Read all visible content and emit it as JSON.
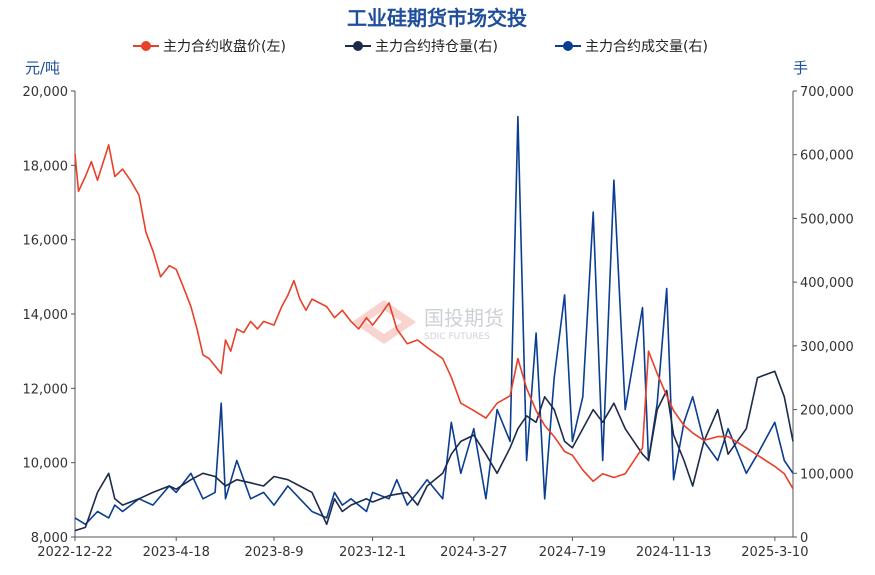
{
  "chart_data": {
    "type": "line",
    "title": "工业硅期货市场交投",
    "y_left_unit": "元/吨",
    "y_right_unit": "手",
    "ylim_left": [
      8000,
      20000
    ],
    "ylim_right": [
      0,
      700000
    ],
    "yticks_left": [
      "20,000",
      "18,000",
      "16,000",
      "14,000",
      "12,000",
      "10,000",
      "8,000"
    ],
    "yticks_right": [
      "700,000",
      "600,000",
      "500,000",
      "400,000",
      "300,000",
      "200,000",
      "100,000",
      "0"
    ],
    "xticks": [
      "2022-12-22",
      "2023-4-18",
      "2023-8-9",
      "2023-12-1",
      "2024-3-27",
      "2024-7-19",
      "2024-11-13",
      "2025-3-10"
    ],
    "watermark": {
      "main": "国投期货",
      "sub": "SDIC FUTURES"
    },
    "colors": {
      "price": "#e8402a",
      "oi": "#1c2b4a",
      "volume": "#0b3d91",
      "title": "#1f4e9c"
    },
    "series": [
      {
        "name": "主力合约收盘价(左)",
        "axis": "left",
        "color": "#e8402a",
        "points": [
          [
            "2022-12-22",
            18300
          ],
          [
            "2022-12-26",
            17300
          ],
          [
            "2023-1-3",
            17700
          ],
          [
            "2023-1-10",
            18100
          ],
          [
            "2023-1-17",
            17600
          ],
          [
            "2023-1-30",
            18550
          ],
          [
            "2023-2-6",
            17700
          ],
          [
            "2023-2-15",
            17900
          ],
          [
            "2023-2-24",
            17600
          ],
          [
            "2023-3-6",
            17200
          ],
          [
            "2023-3-14",
            16200
          ],
          [
            "2023-3-22",
            15700
          ],
          [
            "2023-3-31",
            15000
          ],
          [
            "2023-4-10",
            15300
          ],
          [
            "2023-4-18",
            15200
          ],
          [
            "2023-4-25",
            14800
          ],
          [
            "2023-5-5",
            14200
          ],
          [
            "2023-5-12",
            13600
          ],
          [
            "2023-5-19",
            12900
          ],
          [
            "2023-5-26",
            12800
          ],
          [
            "2023-6-2",
            12600
          ],
          [
            "2023-6-9",
            12400
          ],
          [
            "2023-6-14",
            13300
          ],
          [
            "2023-6-20",
            13000
          ],
          [
            "2023-6-27",
            13600
          ],
          [
            "2023-7-5",
            13500
          ],
          [
            "2023-7-13",
            13800
          ],
          [
            "2023-7-21",
            13600
          ],
          [
            "2023-7-28",
            13800
          ],
          [
            "2023-8-9",
            13700
          ],
          [
            "2023-8-18",
            14200
          ],
          [
            "2023-8-25",
            14500
          ],
          [
            "2023-9-1",
            14900
          ],
          [
            "2023-9-8",
            14400
          ],
          [
            "2023-9-15",
            14100
          ],
          [
            "2023-9-22",
            14400
          ],
          [
            "2023-10-9",
            14200
          ],
          [
            "2023-10-18",
            13900
          ],
          [
            "2023-10-27",
            14100
          ],
          [
            "2023-11-6",
            13800
          ],
          [
            "2023-11-15",
            13600
          ],
          [
            "2023-11-24",
            13900
          ],
          [
            "2023-12-1",
            13700
          ],
          [
            "2023-12-11",
            14000
          ],
          [
            "2023-12-20",
            14300
          ],
          [
            "2023-12-29",
            13600
          ],
          [
            "2024-1-10",
            13200
          ],
          [
            "2024-1-22",
            13300
          ],
          [
            "2024-2-2",
            13100
          ],
          [
            "2024-2-20",
            12800
          ],
          [
            "2024-3-1",
            12300
          ],
          [
            "2024-3-12",
            11600
          ],
          [
            "2024-3-27",
            11400
          ],
          [
            "2024-4-10",
            11200
          ],
          [
            "2024-4-23",
            11600
          ],
          [
            "2024-5-8",
            11800
          ],
          [
            "2024-5-17",
            12800
          ],
          [
            "2024-5-27",
            12000
          ],
          [
            "2024-6-7",
            11400
          ],
          [
            "2024-6-17",
            11000
          ],
          [
            "2024-6-28",
            10700
          ],
          [
            "2024-7-10",
            10300
          ],
          [
            "2024-7-19",
            10200
          ],
          [
            "2024-7-31",
            9800
          ],
          [
            "2024-8-12",
            9500
          ],
          [
            "2024-8-23",
            9700
          ],
          [
            "2024-9-5",
            9600
          ],
          [
            "2024-9-18",
            9700
          ],
          [
            "2024-10-8",
            10400
          ],
          [
            "2024-10-15",
            13000
          ],
          [
            "2024-10-25",
            12400
          ],
          [
            "2024-11-5",
            11800
          ],
          [
            "2024-11-13",
            11400
          ],
          [
            "2024-11-25",
            11000
          ],
          [
            "2024-12-5",
            10800
          ],
          [
            "2024-12-18",
            10600
          ],
          [
            "2025-1-3",
            10700
          ],
          [
            "2025-1-15",
            10700
          ],
          [
            "2025-2-5",
            10400
          ],
          [
            "2025-2-18",
            10200
          ],
          [
            "2025-3-10",
            9900
          ],
          [
            "2025-3-21",
            9700
          ],
          [
            "2025-3-31",
            9300
          ]
        ]
      },
      {
        "name": "主力合约持仓量(右)",
        "axis": "right",
        "color": "#1c2b4a",
        "points": [
          [
            "2022-12-22",
            10000
          ],
          [
            "2023-1-3",
            15000
          ],
          [
            "2023-1-17",
            70000
          ],
          [
            "2023-1-30",
            100000
          ],
          [
            "2023-2-6",
            60000
          ],
          [
            "2023-2-15",
            50000
          ],
          [
            "2023-3-6",
            60000
          ],
          [
            "2023-3-22",
            70000
          ],
          [
            "2023-4-10",
            80000
          ],
          [
            "2023-4-18",
            75000
          ],
          [
            "2023-5-5",
            90000
          ],
          [
            "2023-5-19",
            100000
          ],
          [
            "2023-6-2",
            95000
          ],
          [
            "2023-6-14",
            80000
          ],
          [
            "2023-6-27",
            90000
          ],
          [
            "2023-7-13",
            85000
          ],
          [
            "2023-7-28",
            80000
          ],
          [
            "2023-8-9",
            95000
          ],
          [
            "2023-8-25",
            90000
          ],
          [
            "2023-9-8",
            80000
          ],
          [
            "2023-9-22",
            70000
          ],
          [
            "2023-10-9",
            20000
          ],
          [
            "2023-10-18",
            60000
          ],
          [
            "2023-10-27",
            40000
          ],
          [
            "2023-11-6",
            50000
          ],
          [
            "2023-11-24",
            60000
          ],
          [
            "2023-12-1",
            55000
          ],
          [
            "2023-12-20",
            65000
          ],
          [
            "2024-1-10",
            70000
          ],
          [
            "2024-1-22",
            50000
          ],
          [
            "2024-2-2",
            80000
          ],
          [
            "2024-2-20",
            100000
          ],
          [
            "2024-3-1",
            130000
          ],
          [
            "2024-3-12",
            150000
          ],
          [
            "2024-3-27",
            160000
          ],
          [
            "2024-4-10",
            130000
          ],
          [
            "2024-4-23",
            100000
          ],
          [
            "2024-5-8",
            140000
          ],
          [
            "2024-5-17",
            170000
          ],
          [
            "2024-5-27",
            190000
          ],
          [
            "2024-6-7",
            180000
          ],
          [
            "2024-6-17",
            220000
          ],
          [
            "2024-6-28",
            200000
          ],
          [
            "2024-7-10",
            150000
          ],
          [
            "2024-7-19",
            140000
          ],
          [
            "2024-7-31",
            170000
          ],
          [
            "2024-8-12",
            200000
          ],
          [
            "2024-8-23",
            180000
          ],
          [
            "2024-9-5",
            210000
          ],
          [
            "2024-9-18",
            170000
          ],
          [
            "2024-10-8",
            130000
          ],
          [
            "2024-10-15",
            120000
          ],
          [
            "2024-10-25",
            200000
          ],
          [
            "2024-11-5",
            230000
          ],
          [
            "2024-11-13",
            160000
          ],
          [
            "2024-11-25",
            120000
          ],
          [
            "2024-12-5",
            80000
          ],
          [
            "2024-12-18",
            150000
          ],
          [
            "2025-1-3",
            200000
          ],
          [
            "2025-1-15",
            130000
          ],
          [
            "2025-2-5",
            170000
          ],
          [
            "2025-2-18",
            250000
          ],
          [
            "2025-3-10",
            260000
          ],
          [
            "2025-3-21",
            220000
          ],
          [
            "2025-3-31",
            150000
          ]
        ]
      },
      {
        "name": "主力合约成交量(右)",
        "axis": "right",
        "color": "#0b3d91",
        "points": [
          [
            "2022-12-22",
            30000
          ],
          [
            "2023-1-3",
            20000
          ],
          [
            "2023-1-17",
            40000
          ],
          [
            "2023-1-30",
            30000
          ],
          [
            "2023-2-6",
            50000
          ],
          [
            "2023-2-15",
            40000
          ],
          [
            "2023-3-6",
            60000
          ],
          [
            "2023-3-22",
            50000
          ],
          [
            "2023-4-10",
            80000
          ],
          [
            "2023-4-18",
            70000
          ],
          [
            "2023-5-5",
            100000
          ],
          [
            "2023-5-19",
            60000
          ],
          [
            "2023-6-2",
            70000
          ],
          [
            "2023-6-9",
            210000
          ],
          [
            "2023-6-14",
            60000
          ],
          [
            "2023-6-27",
            120000
          ],
          [
            "2023-7-13",
            60000
          ],
          [
            "2023-7-28",
            70000
          ],
          [
            "2023-8-9",
            50000
          ],
          [
            "2023-8-25",
            80000
          ],
          [
            "2023-9-8",
            60000
          ],
          [
            "2023-9-22",
            40000
          ],
          [
            "2023-10-9",
            30000
          ],
          [
            "2023-10-18",
            70000
          ],
          [
            "2023-10-27",
            50000
          ],
          [
            "2023-11-6",
            60000
          ],
          [
            "2023-11-24",
            40000
          ],
          [
            "2023-12-1",
            70000
          ],
          [
            "2023-12-20",
            60000
          ],
          [
            "2023-12-29",
            90000
          ],
          [
            "2024-1-10",
            50000
          ],
          [
            "2024-1-22",
            70000
          ],
          [
            "2024-2-2",
            90000
          ],
          [
            "2024-2-20",
            60000
          ],
          [
            "2024-3-1",
            180000
          ],
          [
            "2024-3-12",
            100000
          ],
          [
            "2024-3-27",
            170000
          ],
          [
            "2024-4-10",
            60000
          ],
          [
            "2024-4-23",
            200000
          ],
          [
            "2024-5-8",
            150000
          ],
          [
            "2024-5-17",
            660000
          ],
          [
            "2024-5-27",
            120000
          ],
          [
            "2024-6-7",
            320000
          ],
          [
            "2024-6-17",
            60000
          ],
          [
            "2024-6-28",
            250000
          ],
          [
            "2024-7-10",
            380000
          ],
          [
            "2024-7-19",
            150000
          ],
          [
            "2024-7-31",
            220000
          ],
          [
            "2024-8-12",
            510000
          ],
          [
            "2024-8-23",
            120000
          ],
          [
            "2024-9-5",
            560000
          ],
          [
            "2024-9-18",
            200000
          ],
          [
            "2024-10-8",
            360000
          ],
          [
            "2024-10-15",
            120000
          ],
          [
            "2024-10-25",
            210000
          ],
          [
            "2024-11-5",
            390000
          ],
          [
            "2024-11-13",
            90000
          ],
          [
            "2024-11-25",
            180000
          ],
          [
            "2024-12-5",
            220000
          ],
          [
            "2024-12-18",
            150000
          ],
          [
            "2025-1-3",
            120000
          ],
          [
            "2025-1-15",
            170000
          ],
          [
            "2025-2-5",
            100000
          ],
          [
            "2025-2-18",
            130000
          ],
          [
            "2025-3-10",
            180000
          ],
          [
            "2025-3-21",
            120000
          ],
          [
            "2025-3-31",
            100000
          ]
        ]
      }
    ]
  }
}
